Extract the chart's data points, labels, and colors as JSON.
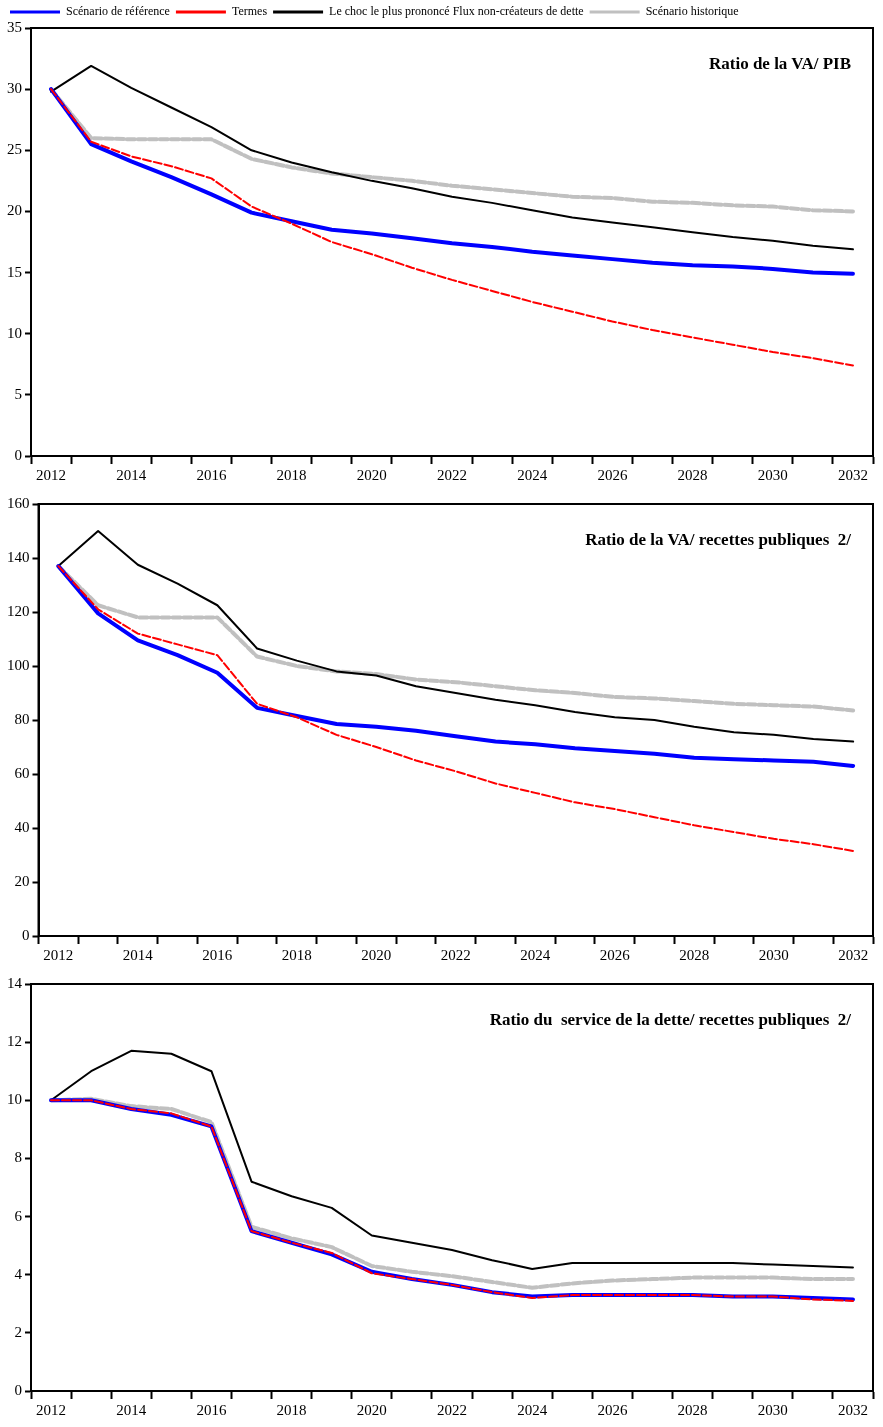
{
  "chart_data": [
    {
      "type": "line",
      "title": "Ratio de la VA/ PIB",
      "categories": [
        "2012",
        null,
        "2014",
        null,
        "2016",
        null,
        "2018",
        null,
        "2020",
        null,
        "2022",
        null,
        "2024",
        null,
        "2026",
        null,
        "2028",
        null,
        "2030",
        null,
        "2032"
      ],
      "ylim": [
        0,
        35
      ],
      "yticks": [
        0,
        5,
        10,
        15,
        20,
        25,
        30,
        35
      ],
      "grid": false,
      "legend": "top",
      "marker": "none",
      "series": [
        {
          "name": "Scénario de référence",
          "color": "#0000ff",
          "line_style": "solid",
          "values": [
            30,
            25.5,
            24.1,
            22.8,
            21.4,
            19.9,
            19.2,
            18.5,
            18.2,
            17.8,
            17.4,
            17.1,
            16.7,
            16.4,
            16.1,
            15.8,
            15.6,
            15.5,
            15.3,
            15.0,
            14.9
          ]
        },
        {
          "name": "Termes",
          "color": "#ff0000",
          "line_style": "dashed",
          "values": [
            30,
            25.7,
            24.5,
            23.7,
            22.7,
            20.4,
            19.0,
            17.5,
            16.5,
            15.4,
            14.4,
            13.5,
            12.6,
            11.8,
            11.0,
            10.3,
            9.7,
            9.1,
            8.5,
            8.0,
            7.4
          ]
        },
        {
          "name": "Le choc le plus prononcé Flux non-créateurs de dette",
          "color": "#000000",
          "line_style": "solid",
          "values": [
            29.8,
            31.9,
            30.1,
            28.5,
            26.9,
            25.0,
            24.0,
            23.2,
            22.5,
            21.9,
            21.2,
            20.7,
            20.1,
            19.5,
            19.1,
            18.7,
            18.3,
            17.9,
            17.6,
            17.2,
            16.9
          ]
        },
        {
          "name": "Scénario historique",
          "color": "#c0c0c0",
          "line_style": "dashed",
          "values": [
            30,
            26.0,
            25.9,
            25.9,
            25.9,
            24.3,
            23.6,
            23.1,
            22.8,
            22.5,
            22.1,
            21.8,
            21.5,
            21.2,
            21.1,
            20.8,
            20.7,
            20.5,
            20.4,
            20.1,
            20.0
          ]
        }
      ]
    },
    {
      "type": "line",
      "title": "Ratio de la VA/ recettes publiques  2/",
      "categories": [
        "2012",
        null,
        "2014",
        null,
        "2016",
        null,
        "2018",
        null,
        "2020",
        null,
        "2022",
        null,
        "2024",
        null,
        "2026",
        null,
        "2028",
        null,
        "2030",
        null,
        "2032"
      ],
      "ylim": [
        0,
        160
      ],
      "yticks": [
        0,
        20,
        40,
        60,
        80,
        100,
        120,
        140,
        160
      ],
      "grid": false,
      "marker": "none",
      "series": [
        {
          "color": "#0000ff",
          "line_style": "solid",
          "values": [
            137,
            119.5,
            109.5,
            104,
            97.5,
            84.5,
            81.5,
            78.5,
            77.5,
            76,
            74,
            72,
            71,
            69.5,
            68.5,
            67.5,
            66,
            65.5,
            65,
            64.5,
            63
          ]
        },
        {
          "color": "#ff0000",
          "line_style": "dashed",
          "values": [
            137,
            121,
            112,
            108,
            104,
            86,
            81,
            74.5,
            70,
            65,
            61,
            56.5,
            53,
            49.5,
            47,
            44,
            41,
            38.5,
            36,
            34,
            31.5
          ]
        },
        {
          "color": "#000000",
          "line_style": "solid",
          "values": [
            137,
            150,
            137.5,
            130.5,
            122.5,
            106.5,
            102,
            98,
            96.5,
            92.5,
            90,
            87.5,
            85.5,
            83,
            81,
            80,
            77.5,
            75.5,
            74.5,
            73,
            72
          ]
        },
        {
          "color": "#c0c0c0",
          "line_style": "dashed",
          "values": [
            137,
            122.5,
            118,
            118,
            118,
            103.5,
            100,
            98,
            97,
            95,
            94,
            92.5,
            91,
            90,
            88.5,
            88,
            87,
            86,
            85.5,
            85,
            83.5
          ]
        }
      ]
    },
    {
      "type": "line",
      "title": "Ratio du  service de la dette/ recettes publiques  2/",
      "categories": [
        "2012",
        null,
        "2014",
        null,
        "2016",
        null,
        "2018",
        null,
        "2020",
        null,
        "2022",
        null,
        "2024",
        null,
        "2026",
        null,
        "2028",
        null,
        "2030",
        null,
        "2032"
      ],
      "ylim": [
        0,
        14
      ],
      "yticks": [
        0,
        2,
        4,
        6,
        8,
        10,
        12,
        14
      ],
      "grid": false,
      "marker": "none",
      "series": [
        {
          "color": "#0000ff",
          "line_style": "solid",
          "values": [
            10,
            10,
            9.7,
            9.5,
            9.1,
            5.5,
            5.1,
            4.7,
            4.1,
            3.85,
            3.65,
            3.4,
            3.25,
            3.3,
            3.3,
            3.3,
            3.3,
            3.25,
            3.25,
            3.2,
            3.15
          ]
        },
        {
          "color": "#ff0000",
          "line_style": "dashed",
          "values": [
            10,
            10,
            9.7,
            9.55,
            9.1,
            5.5,
            5.1,
            4.75,
            4.05,
            3.85,
            3.65,
            3.4,
            3.2,
            3.3,
            3.3,
            3.3,
            3.3,
            3.25,
            3.25,
            3.15,
            3.1
          ]
        },
        {
          "color": "#000000",
          "line_style": "solid",
          "values": [
            10,
            11,
            11.7,
            11.6,
            11.0,
            7.2,
            6.7,
            6.3,
            5.35,
            5.1,
            4.85,
            4.5,
            4.2,
            4.4,
            4.4,
            4.4,
            4.4,
            4.4,
            4.35,
            4.3,
            4.25
          ]
        },
        {
          "color": "#c0c0c0",
          "line_style": "dashed",
          "values": [
            10,
            10.05,
            9.8,
            9.7,
            9.25,
            5.65,
            5.25,
            4.95,
            4.3,
            4.1,
            3.95,
            3.75,
            3.55,
            3.7,
            3.8,
            3.85,
            3.9,
            3.9,
            3.9,
            3.85,
            3.85
          ]
        }
      ]
    }
  ]
}
